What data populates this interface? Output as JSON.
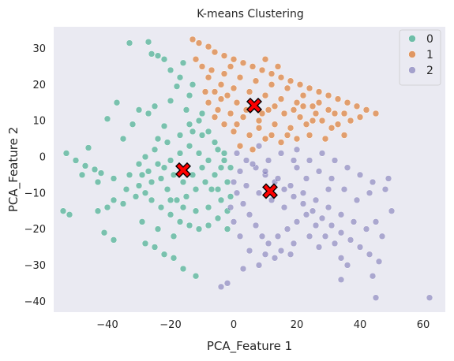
{
  "chart_data": {
    "type": "scatter",
    "title": "K-means Clustering",
    "xlabel": "PCA_Feature 1",
    "ylabel": "PCA_Feature 2",
    "xlim": [
      -57,
      67
    ],
    "ylim": [
      -43,
      36
    ],
    "xticks": [
      -40,
      -20,
      0,
      20,
      40,
      60
    ],
    "yticks": [
      -40,
      -30,
      -20,
      -10,
      0,
      10,
      20,
      30
    ],
    "xtick_labels": [
      "−40",
      "−20",
      "0",
      "20",
      "40",
      "60"
    ],
    "ytick_labels": [
      "−40",
      "−30",
      "−20",
      "−10",
      "0",
      "10",
      "20",
      "30"
    ],
    "grid": false,
    "background": "#eaeaf2",
    "legend_position": "top-right",
    "series": [
      {
        "name": "0",
        "color": "#1b9e77",
        "points": [
          [
            -33,
            31.5
          ],
          [
            -27,
            31.8
          ],
          [
            -22,
            27
          ],
          [
            -26,
            28.5
          ],
          [
            -24,
            28
          ],
          [
            -16,
            26
          ],
          [
            -20,
            24
          ],
          [
            -17,
            22
          ],
          [
            -13,
            20
          ],
          [
            -18,
            19.5
          ],
          [
            -14,
            17
          ],
          [
            -20,
            15.5
          ],
          [
            -25,
            14
          ],
          [
            -37,
            15
          ],
          [
            -30,
            13
          ],
          [
            -27,
            12
          ],
          [
            -40,
            10.5
          ],
          [
            -32,
            9
          ],
          [
            -22,
            8.5
          ],
          [
            -15,
            13
          ],
          [
            -10,
            12
          ],
          [
            -24,
            5
          ],
          [
            -35,
            5
          ],
          [
            -46,
            2.5
          ],
          [
            -53,
            1
          ],
          [
            -50,
            -1
          ],
          [
            -47,
            -2.5
          ],
          [
            -44,
            -3.5
          ],
          [
            -42,
            -4.5
          ],
          [
            -48,
            -5
          ],
          [
            -43,
            -7
          ],
          [
            -38,
            -6
          ],
          [
            -33,
            -5
          ],
          [
            -30,
            -8
          ],
          [
            -28,
            -10
          ],
          [
            -26,
            -12
          ],
          [
            -23,
            -14
          ],
          [
            -20,
            -16
          ],
          [
            -17,
            -18
          ],
          [
            -14,
            -19
          ],
          [
            -11,
            -20
          ],
          [
            -8,
            -19
          ],
          [
            -5,
            -17
          ],
          [
            -2,
            -15
          ],
          [
            -1,
            -11
          ],
          [
            -2,
            -7
          ],
          [
            -4,
            -3
          ],
          [
            -3,
            1
          ],
          [
            -6,
            4
          ],
          [
            -10,
            6
          ],
          [
            -13,
            7
          ],
          [
            -17,
            6
          ],
          [
            -21,
            4
          ],
          [
            -25,
            2
          ],
          [
            -28,
            0
          ],
          [
            -30,
            -2
          ],
          [
            -27,
            -4
          ],
          [
            -24,
            -2
          ],
          [
            -20,
            -1
          ],
          [
            -17,
            1
          ],
          [
            -14,
            3
          ],
          [
            -11,
            1
          ],
          [
            -8,
            -1
          ],
          [
            -6,
            -5
          ],
          [
            -9,
            -7
          ],
          [
            -12,
            -9
          ],
          [
            -15,
            -11
          ],
          [
            -18,
            -12
          ],
          [
            -21,
            -9
          ],
          [
            -23,
            -6
          ],
          [
            -19,
            -5
          ],
          [
            -16,
            -7
          ],
          [
            -13,
            -5
          ],
          [
            -10,
            -3
          ],
          [
            -7,
            -9
          ],
          [
            -4,
            -12
          ],
          [
            -8,
            -14
          ],
          [
            -12,
            -15
          ],
          [
            -16,
            -14
          ],
          [
            -20,
            -12
          ],
          [
            -22,
            -3
          ],
          [
            -26,
            -7
          ],
          [
            -29,
            -5
          ],
          [
            -31,
            -11
          ],
          [
            -34,
            -9
          ],
          [
            -38,
            -12
          ],
          [
            -35,
            -13
          ],
          [
            -40,
            -14
          ],
          [
            -43,
            -15
          ],
          [
            -29,
            -18
          ],
          [
            -24,
            -20
          ],
          [
            -19,
            -22
          ],
          [
            -54,
            -15
          ],
          [
            -52,
            -16
          ],
          [
            -41,
            -21
          ],
          [
            -38,
            -23
          ],
          [
            -28,
            -24
          ],
          [
            -25,
            -25
          ],
          [
            -22,
            -27
          ],
          [
            -19,
            -28
          ],
          [
            -16,
            -31
          ],
          [
            -12,
            -33
          ],
          [
            -2,
            -20
          ],
          [
            -5,
            -9
          ],
          [
            -1,
            -3
          ],
          [
            -3,
            -1
          ],
          [
            -14,
            9
          ],
          [
            -8,
            7
          ],
          [
            -5,
            2
          ],
          [
            -11,
            10
          ]
        ]
      },
      {
        "name": "1",
        "color": "#d95f02",
        "points": [
          [
            -13,
            32.5
          ],
          [
            -11,
            31.5
          ],
          [
            -8,
            30.5
          ],
          [
            -6,
            29
          ],
          [
            -3,
            28
          ],
          [
            0,
            27
          ],
          [
            3,
            26
          ],
          [
            6,
            25
          ],
          [
            9,
            24
          ],
          [
            12,
            23
          ],
          [
            15,
            22
          ],
          [
            18,
            21
          ],
          [
            21,
            20
          ],
          [
            24,
            19
          ],
          [
            27,
            18
          ],
          [
            30,
            17
          ],
          [
            33,
            16
          ],
          [
            36,
            15
          ],
          [
            39,
            14
          ],
          [
            42,
            13
          ],
          [
            45,
            12
          ],
          [
            40,
            11
          ],
          [
            35,
            12
          ],
          [
            30,
            13
          ],
          [
            25,
            14
          ],
          [
            20,
            15
          ],
          [
            15,
            16
          ],
          [
            10,
            17
          ],
          [
            5,
            18
          ],
          [
            0,
            19
          ],
          [
            -4,
            20
          ],
          [
            -8,
            22
          ],
          [
            -10,
            25
          ],
          [
            -12,
            27
          ],
          [
            -7,
            24
          ],
          [
            -3,
            23
          ],
          [
            2,
            22
          ],
          [
            7,
            21
          ],
          [
            12,
            20
          ],
          [
            17,
            19
          ],
          [
            22,
            17
          ],
          [
            27,
            15
          ],
          [
            32,
            12
          ],
          [
            37,
            10
          ],
          [
            28,
            10
          ],
          [
            23,
            9
          ],
          [
            18,
            8
          ],
          [
            13,
            9
          ],
          [
            8,
            10
          ],
          [
            3,
            11
          ],
          [
            -1,
            12
          ],
          [
            -5,
            13
          ],
          [
            -8,
            15
          ],
          [
            -4,
            16
          ],
          [
            1,
            15
          ],
          [
            6,
            14
          ],
          [
            11,
            13
          ],
          [
            16,
            12
          ],
          [
            21,
            11
          ],
          [
            26,
            12
          ],
          [
            31,
            8
          ],
          [
            35,
            6
          ],
          [
            20,
            5
          ],
          [
            15,
            4
          ],
          [
            10,
            5
          ],
          [
            5,
            6
          ],
          [
            0,
            7
          ],
          [
            -3,
            9
          ],
          [
            -6,
            11
          ],
          [
            2,
            3
          ],
          [
            6,
            2
          ],
          [
            12,
            6
          ],
          [
            17,
            6
          ],
          [
            24,
            6
          ],
          [
            29,
            5
          ],
          [
            13,
            14
          ],
          [
            9,
            12
          ],
          [
            4,
            13
          ],
          [
            -2,
            17
          ],
          [
            -6,
            18
          ],
          [
            14,
            25
          ],
          [
            10,
            27
          ],
          [
            -1,
            25
          ],
          [
            -9,
            18
          ],
          [
            1,
            9
          ],
          [
            8,
            8
          ],
          [
            19,
            13
          ],
          [
            22,
            14
          ],
          [
            25,
            10
          ],
          [
            33,
            9
          ]
        ]
      },
      {
        "name": "2",
        "color": "#7570b3",
        "points": [
          [
            1,
            1
          ],
          [
            4,
            -1
          ],
          [
            7,
            -3
          ],
          [
            10,
            -5
          ],
          [
            13,
            -7
          ],
          [
            16,
            -9
          ],
          [
            19,
            -11
          ],
          [
            22,
            -13
          ],
          [
            25,
            -15
          ],
          [
            28,
            -17
          ],
          [
            31,
            -19
          ],
          [
            34,
            -21
          ],
          [
            37,
            -23
          ],
          [
            40,
            -25
          ],
          [
            43,
            -27
          ],
          [
            46,
            -29
          ],
          [
            42,
            -20
          ],
          [
            38,
            -18
          ],
          [
            34,
            -16
          ],
          [
            30,
            -14
          ],
          [
            26,
            -12
          ],
          [
            22,
            -10
          ],
          [
            18,
            -8
          ],
          [
            14,
            -6
          ],
          [
            10,
            -4
          ],
          [
            6,
            -2
          ],
          [
            2,
            -4
          ],
          [
            0,
            -7
          ],
          [
            1,
            -10
          ],
          [
            3,
            -13
          ],
          [
            5,
            -16
          ],
          [
            7,
            -19
          ],
          [
            9,
            -22
          ],
          [
            11,
            -24
          ],
          [
            14,
            -22
          ],
          [
            17,
            -20
          ],
          [
            20,
            -18
          ],
          [
            23,
            -16
          ],
          [
            26,
            -19
          ],
          [
            29,
            -22
          ],
          [
            32,
            -24
          ],
          [
            24,
            -22
          ],
          [
            19,
            -24
          ],
          [
            15,
            -26
          ],
          [
            13,
            -28
          ],
          [
            10,
            -27
          ],
          [
            5,
            -26
          ],
          [
            2,
            -22
          ],
          [
            0,
            -18
          ],
          [
            -1,
            -14
          ],
          [
            4,
            -8
          ],
          [
            8,
            -10
          ],
          [
            12,
            -12
          ],
          [
            16,
            -14
          ],
          [
            20,
            -3
          ],
          [
            24,
            -1
          ],
          [
            28,
            1
          ],
          [
            32,
            -1
          ],
          [
            36,
            -3
          ],
          [
            40,
            -5
          ],
          [
            44,
            -7
          ],
          [
            48,
            -9
          ],
          [
            49,
            -6
          ],
          [
            43,
            -10
          ],
          [
            39,
            -12
          ],
          [
            35,
            -9
          ],
          [
            31,
            -6
          ],
          [
            27,
            -4
          ],
          [
            23,
            -6
          ],
          [
            19,
            -1
          ],
          [
            15,
            1
          ],
          [
            11,
            -1
          ],
          [
            8,
            3
          ],
          [
            20,
            2
          ],
          [
            30,
            -9
          ],
          [
            45,
            -18
          ],
          [
            47,
            -22
          ],
          [
            50,
            -15
          ],
          [
            34,
            -28
          ],
          [
            27,
            -25
          ],
          [
            18,
            -27
          ],
          [
            8,
            -30
          ],
          [
            3,
            -31
          ],
          [
            -2,
            -35
          ],
          [
            -4,
            -36
          ],
          [
            34,
            -34
          ],
          [
            45,
            -39
          ],
          [
            62,
            -39
          ],
          [
            44,
            -33
          ],
          [
            36,
            -30
          ]
        ]
      }
    ],
    "centroids": [
      {
        "cluster": "0",
        "x": -16,
        "y": -3.7
      },
      {
        "cluster": "1",
        "x": 6.5,
        "y": 14.2
      },
      {
        "cluster": "2",
        "x": 11.5,
        "y": -9.5
      }
    ],
    "centroid_color": "#ff0000",
    "legend_entries": [
      "0",
      "1",
      "2"
    ]
  }
}
